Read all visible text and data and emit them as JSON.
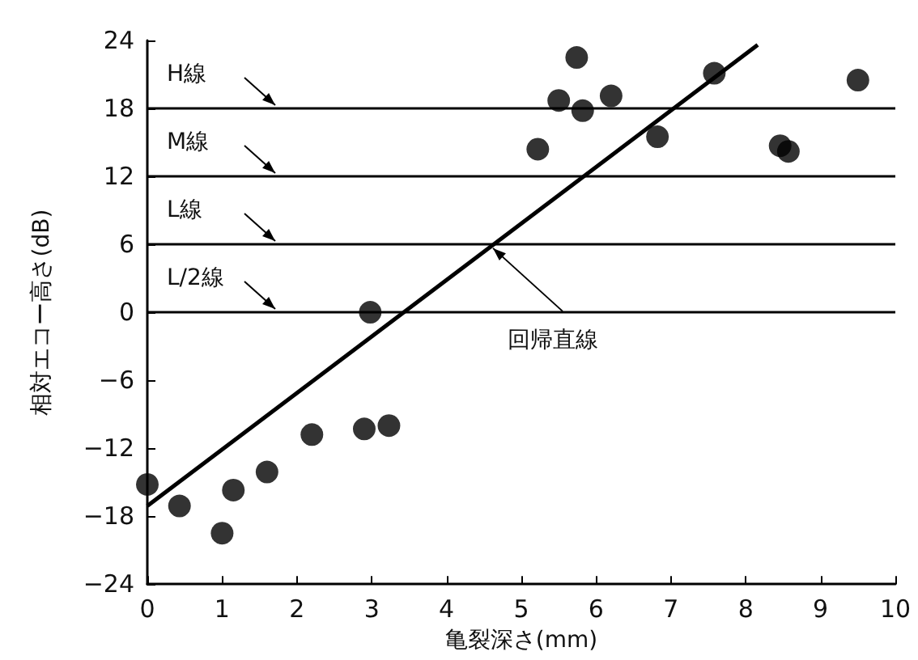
{
  "chart_data": {
    "type": "scatter",
    "xlabel": "亀裂深さ(mm)",
    "ylabel": "相対エコー高さ(dB)",
    "xlim": [
      0,
      10
    ],
    "ylim": [
      -24,
      24
    ],
    "xticks": [
      0,
      1,
      2,
      3,
      4,
      5,
      6,
      7,
      8,
      9,
      10
    ],
    "yticks": [
      -24,
      -18,
      -12,
      -6,
      0,
      6,
      12,
      18,
      24
    ],
    "marker": "circle",
    "grid": false,
    "series": [
      {
        "color": "#000000",
        "x": [
          0,
          0.43,
          1.0,
          1.15,
          1.6,
          2.2,
          2.9,
          3.23,
          2.98,
          5.22,
          5.5,
          5.74,
          5.82,
          6.2,
          6.82,
          7.58,
          8.46,
          8.57,
          9.5
        ],
        "values": [
          -15.2,
          -17.1,
          -19.5,
          -15.7,
          -14.1,
          -10.8,
          -10.3,
          -10.0,
          0,
          14.4,
          18.7,
          22.5,
          17.8,
          19.1,
          15.5,
          21.1,
          14.7,
          14.2,
          20.5
        ]
      },
      {
        "type": "line",
        "color": "#000000",
        "x": [
          0,
          8.16
        ],
        "values": [
          -17.1,
          23.6
        ],
        "marker": "none"
      }
    ],
    "ref_lines": [
      {
        "axis": "y",
        "value": 18,
        "label": "H線",
        "color": "#000000"
      },
      {
        "axis": "y",
        "value": 12,
        "label": "M線",
        "color": "#000000"
      },
      {
        "axis": "y",
        "value": 6,
        "label": "L線",
        "color": "#000000"
      },
      {
        "axis": "y",
        "value": 0,
        "label": "L/2線",
        "color": "#000000"
      }
    ],
    "annotations": [
      {
        "text": "回帰直線",
        "x": 4.6,
        "y": 5.8
      }
    ]
  }
}
